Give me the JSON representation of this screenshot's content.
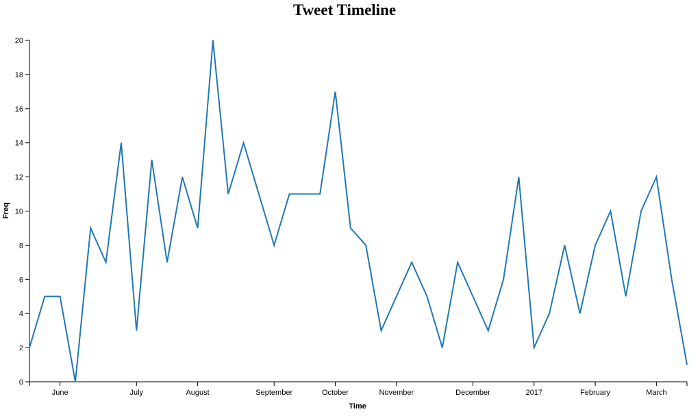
{
  "chart_data": {
    "type": "line",
    "title": "Tweet Timeline",
    "x_label": "Time",
    "y_label": "Freq",
    "categories": [
      null,
      null,
      "June",
      null,
      null,
      null,
      null,
      "July",
      null,
      null,
      null,
      "August",
      null,
      null,
      null,
      null,
      "September",
      null,
      null,
      null,
      "October",
      null,
      null,
      null,
      "November",
      null,
      null,
      null,
      null,
      "December",
      null,
      null,
      null,
      "2017",
      null,
      null,
      null,
      "February",
      null,
      null,
      null,
      "March",
      null,
      null
    ],
    "series": [
      {
        "name": "Freq",
        "color": "#1f77b4",
        "values": [
          2,
          5,
          5,
          0,
          9,
          7,
          14,
          3,
          13,
          7,
          12,
          9,
          20,
          11,
          14,
          11,
          8,
          11,
          11,
          11,
          17,
          9,
          8,
          3,
          5,
          7,
          5,
          2,
          7,
          5,
          3,
          6,
          12,
          2,
          4,
          8,
          4,
          8,
          10,
          5,
          10,
          12,
          6,
          1
        ]
      }
    ],
    "ylim": [
      0,
      20
    ],
    "yticks": [
      0,
      2,
      4,
      6,
      8,
      10,
      12,
      14,
      16,
      18,
      20
    ]
  }
}
